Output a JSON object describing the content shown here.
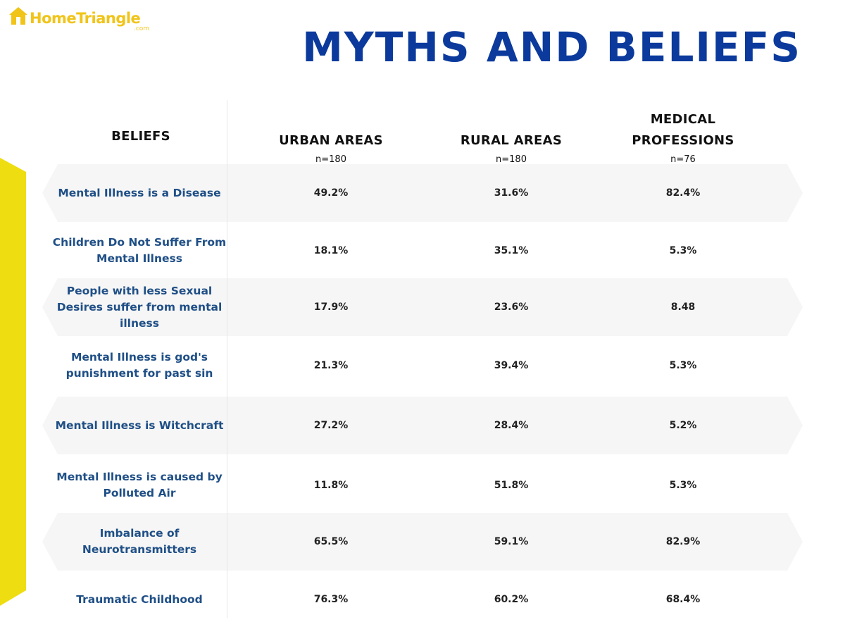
{
  "brand": {
    "name": "HomeTriangle",
    "suffix": ".com",
    "color": "#f0c419"
  },
  "title": "MYTHS AND BELIEFS",
  "colors": {
    "title": "#0b3a9c",
    "belief_text": "#1f4f86",
    "accent_yellow": "#eedd10",
    "row_band": "#f6f6f6"
  },
  "chart_data": {
    "type": "table",
    "title": "MYTHS AND BELIEFS",
    "columns": [
      {
        "key": "beliefs",
        "label": "BELIEFS",
        "n": ""
      },
      {
        "key": "urban",
        "label": "URBAN AREAS",
        "n": "n=180"
      },
      {
        "key": "rural",
        "label": "RURAL AREAS",
        "n": "n=180"
      },
      {
        "key": "medical",
        "label": "MEDICAL PROFESSIONS",
        "n": "n=76"
      }
    ],
    "rows": [
      {
        "belief": "Mental Illness is a Disease",
        "urban": "49.2%",
        "rural": "31.6%",
        "medical": "82.4%"
      },
      {
        "belief": "Children Do Not Suffer From Mental Illness",
        "urban": "18.1%",
        "rural": "35.1%",
        "medical": "5.3%"
      },
      {
        "belief": "People with less Sexual Desires suffer from mental illness",
        "urban": "17.9%",
        "rural": "23.6%",
        "medical": "8.48"
      },
      {
        "belief": "Mental Illness is god's punishment for past sin",
        "urban": "21.3%",
        "rural": "39.4%",
        "medical": "5.3%"
      },
      {
        "belief": "Mental Illness is Witchcraft",
        "urban": "27.2%",
        "rural": "28.4%",
        "medical": "5.2%"
      },
      {
        "belief": "Mental Illness is  caused by Polluted Air",
        "urban": "11.8%",
        "rural": "51.8%",
        "medical": "5.3%"
      },
      {
        "belief": "Imbalance of Neurotransmitters",
        "urban": "65.5%",
        "rural": "59.1%",
        "medical": "82.9%"
      },
      {
        "belief": "Traumatic Childhood",
        "urban": "76.3%",
        "rural": "60.2%",
        "medical": "68.4%"
      }
    ]
  }
}
